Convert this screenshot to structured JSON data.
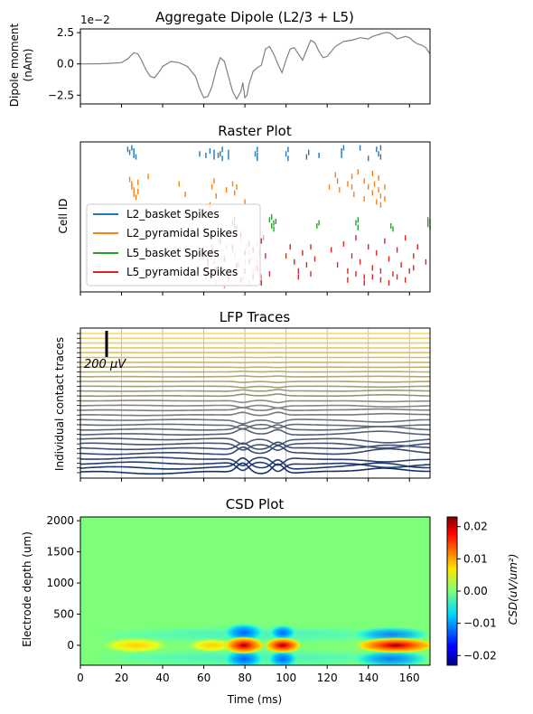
{
  "chart_data": [
    {
      "type": "line",
      "title": "Aggregate Dipole (L2/3 + L5)",
      "ylabel_line1": "Dipole moment",
      "ylabel_line2": "(nAm)",
      "offset_text": "1e−2",
      "xlim": [
        0,
        170
      ],
      "ylim": [
        -3.2,
        2.8
      ],
      "yticks": [
        -2.5,
        0.0,
        2.5
      ],
      "ytick_labels": [
        "−2.5",
        "0.0",
        "2.5"
      ],
      "line_color": "#808080",
      "x": [
        0,
        5,
        10,
        15,
        20,
        23,
        26,
        28,
        30,
        32,
        34,
        36,
        38,
        40,
        44,
        48,
        52,
        56,
        58,
        60,
        62,
        64,
        66,
        68,
        70,
        72,
        74,
        76,
        78,
        79,
        80,
        81,
        82,
        84,
        86,
        88,
        90,
        92,
        94,
        96,
        98,
        100,
        102,
        104,
        106,
        108,
        110,
        112,
        114,
        116,
        118,
        120,
        124,
        128,
        132,
        136,
        140,
        142,
        144,
        146,
        148,
        150,
        152,
        154,
        156,
        158,
        160,
        162,
        164,
        166,
        168,
        170
      ],
      "y": [
        0,
        0,
        0.02,
        0.05,
        0.1,
        0.4,
        0.9,
        0.8,
        0.2,
        -0.5,
        -1.0,
        -1.1,
        -0.7,
        -0.2,
        0.2,
        0.1,
        -0.2,
        -1.0,
        -2.0,
        -2.7,
        -2.6,
        -1.8,
        -0.5,
        0.5,
        0.2,
        -1.0,
        -2.2,
        -2.8,
        -2.2,
        -1.5,
        -2.7,
        -2.5,
        -1.6,
        -0.6,
        -0.3,
        -0.1,
        1.2,
        1.4,
        0.8,
        0.0,
        -0.7,
        0.3,
        1.2,
        1.3,
        0.8,
        0.3,
        1.1,
        1.9,
        1.7,
        1.0,
        0.5,
        0.6,
        1.4,
        1.8,
        1.9,
        2.1,
        2.0,
        2.2,
        2.3,
        2.4,
        2.5,
        2.5,
        2.3,
        2.0,
        2.1,
        2.2,
        2.1,
        1.8,
        1.6,
        1.5,
        1.3,
        0.8
      ]
    },
    {
      "type": "scatter",
      "title": "Raster Plot",
      "ylabel": "Cell ID",
      "xlim": [
        0,
        170
      ],
      "ylim": [
        0,
        100
      ],
      "legend_position": "lower-left",
      "series": [
        {
          "name": "L2_basket Spikes",
          "color": "#1f77b4",
          "x": [
            23,
            24,
            25,
            26,
            26,
            27,
            58,
            61,
            63,
            65,
            65,
            67,
            68,
            69,
            69,
            72,
            72,
            85,
            86,
            86,
            86,
            100,
            101,
            101,
            110,
            111,
            116,
            127,
            127,
            128,
            136,
            140,
            144,
            145,
            146,
            146
          ],
          "y": [
            95,
            93,
            96,
            91,
            94,
            90,
            92,
            91,
            94,
            90,
            93,
            91,
            92,
            95,
            89,
            93,
            90,
            92,
            95,
            89,
            91,
            92,
            95,
            89,
            90,
            93,
            91,
            94,
            91,
            96,
            96,
            89,
            95,
            92,
            90,
            96
          ]
        },
        {
          "name": "L2_pyramidal Spikes",
          "color": "#ff7f0e",
          "x": [
            24,
            25,
            25,
            26,
            26,
            27,
            28,
            28,
            33,
            48,
            51,
            63,
            64,
            65,
            66,
            71,
            74,
            75,
            76,
            80,
            121,
            124,
            125,
            126,
            130,
            132,
            132,
            133,
            135,
            138,
            138,
            140,
            142,
            142,
            143,
            144,
            145,
            145,
            146,
            146,
            148,
            148
          ],
          "y": [
            75,
            72,
            70,
            68,
            65,
            63,
            73,
            67,
            77,
            72,
            65,
            58,
            70,
            74,
            64,
            68,
            72,
            66,
            70,
            60,
            70,
            78,
            74,
            68,
            72,
            77,
            70,
            65,
            80,
            74,
            62,
            70,
            79,
            66,
            72,
            60,
            76,
            68,
            64,
            58,
            70,
            62
          ]
        },
        {
          "name": "L5_basket Spikes",
          "color": "#2ca02c",
          "x": [
            74,
            75,
            75,
            76,
            92,
            93,
            93,
            94,
            94,
            95,
            115,
            116,
            134,
            135,
            135,
            151,
            152,
            169,
            169,
            170,
            170
          ],
          "y": [
            46,
            44,
            48,
            42,
            48,
            44,
            50,
            42,
            46,
            47,
            44,
            46,
            46,
            48,
            43,
            44,
            42,
            48,
            45,
            43,
            47
          ]
        },
        {
          "name": "L5_pyramidal Spikes",
          "color": "#d62728",
          "x": [
            62,
            64,
            66,
            68,
            70,
            72,
            74,
            76,
            78,
            78,
            80,
            80,
            82,
            82,
            84,
            84,
            86,
            88,
            88,
            90,
            92,
            102,
            104,
            106,
            108,
            110,
            112,
            114,
            122,
            125,
            128,
            130,
            132,
            134,
            136,
            138,
            140,
            142,
            144,
            146,
            148,
            150,
            152,
            154,
            156,
            158,
            160,
            162,
            164,
            168,
            130,
            134,
            138,
            142,
            146,
            150,
            154,
            158,
            162,
            100,
            106,
            112
          ],
          "y": [
            20,
            28,
            15,
            34,
            22,
            10,
            30,
            18,
            38,
            8,
            26,
            14,
            32,
            20,
            10,
            28,
            16,
            34,
            6,
            24,
            12,
            30,
            20,
            14,
            26,
            18,
            12,
            22,
            28,
            18,
            32,
            14,
            24,
            36,
            20,
            10,
            30,
            16,
            26,
            8,
            34,
            22,
            12,
            28,
            18,
            36,
            14,
            24,
            30,
            20,
            8,
            12,
            6,
            10,
            14,
            6,
            10,
            8,
            16,
            24,
            10,
            30
          ]
        },
        {
          "name": "",
          "color": "#e8a0a0",
          "x": [
            60,
            62,
            64,
            66,
            68,
            70,
            72,
            74,
            76,
            78,
            80,
            82,
            84,
            86,
            88,
            61,
            63,
            65,
            67,
            69,
            71,
            73,
            75,
            77,
            79,
            81,
            83,
            85,
            87,
            89,
            66,
            70,
            74,
            78,
            82,
            86
          ],
          "y": [
            24,
            18,
            30,
            12,
            36,
            22,
            8,
            28,
            16,
            34,
            20,
            26,
            14,
            32,
            10,
            10,
            26,
            20,
            34,
            16,
            30,
            12,
            24,
            18,
            8,
            30,
            22,
            16,
            26,
            36,
            6,
            4,
            38,
            40,
            6,
            20
          ]
        }
      ]
    },
    {
      "type": "line",
      "title": "LFP Traces",
      "ylabel": "Individual contact traces",
      "scale_bar_label": "200 μV",
      "xlim": [
        0,
        170
      ],
      "trace_count": 30,
      "color_top": "#f6d862",
      "color_mid": "#8a8a80",
      "color_bottom": "#14306a",
      "event_times": [
        79,
        96,
        148
      ],
      "grid": true
    },
    {
      "type": "heatmap",
      "title": "CSD Plot",
      "xlabel": "Time (ms)",
      "ylabel": "Electrode depth (um)",
      "xlim": [
        0,
        170
      ],
      "ylim": [
        -320,
        2060
      ],
      "xticks": [
        0,
        20,
        40,
        60,
        80,
        100,
        120,
        140,
        160
      ],
      "yticks": [
        0,
        500,
        1000,
        1500,
        2000
      ],
      "colorbar_label": "CSD(uV/um²)",
      "colorbar_ticks": [
        -0.02,
        -0.01,
        0.0,
        0.01,
        0.02
      ],
      "colorbar_tick_labels": [
        "−0.02",
        "−0.01",
        "0.00",
        "0.01",
        "0.02"
      ],
      "vmin": -0.023,
      "vmax": 0.023,
      "colormap": "jet"
    }
  ]
}
